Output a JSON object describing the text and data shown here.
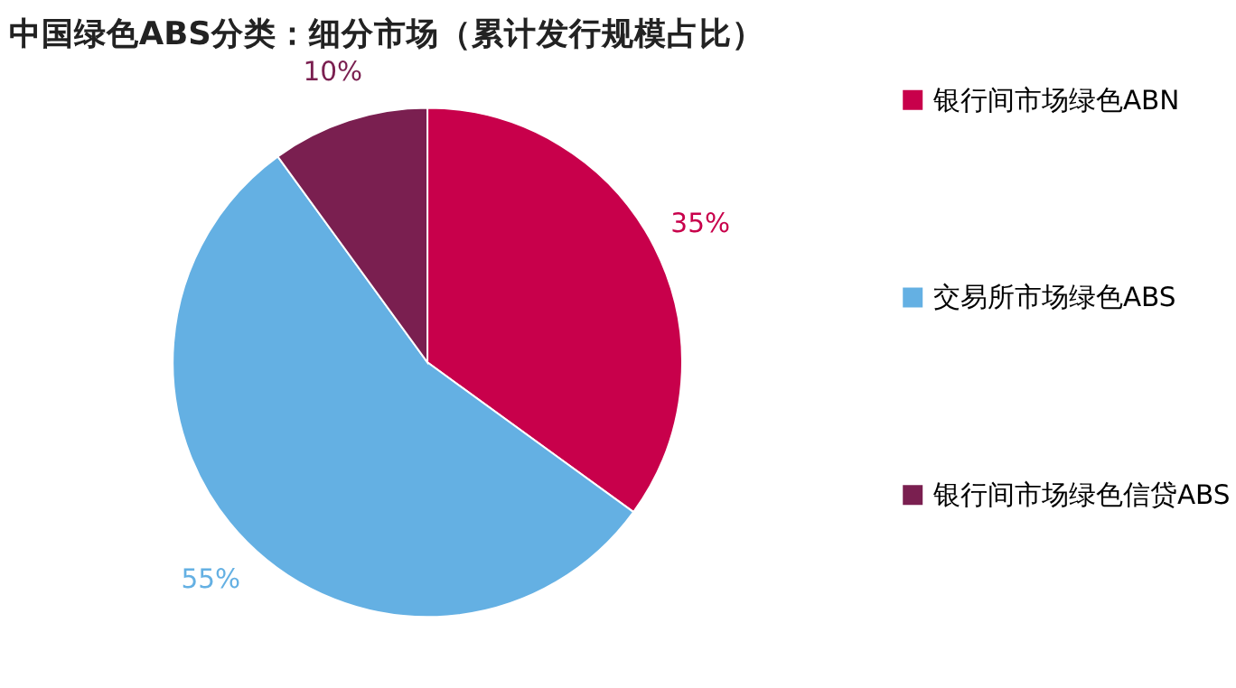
{
  "chart_data": {
    "type": "pie",
    "title": "中国绿色ABS分类：细分市场（累计发行规模占比）",
    "categories": [
      "银行间市场绿色ABN",
      "交易所市场绿色ABS",
      "银行间市场绿色信贷ABS"
    ],
    "values": [
      35,
      55,
      10
    ],
    "colors": [
      "#c8004b",
      "#64b0e3",
      "#7a1f50"
    ],
    "value_labels": [
      "35%",
      "55%",
      "10%"
    ],
    "legend": "right"
  }
}
